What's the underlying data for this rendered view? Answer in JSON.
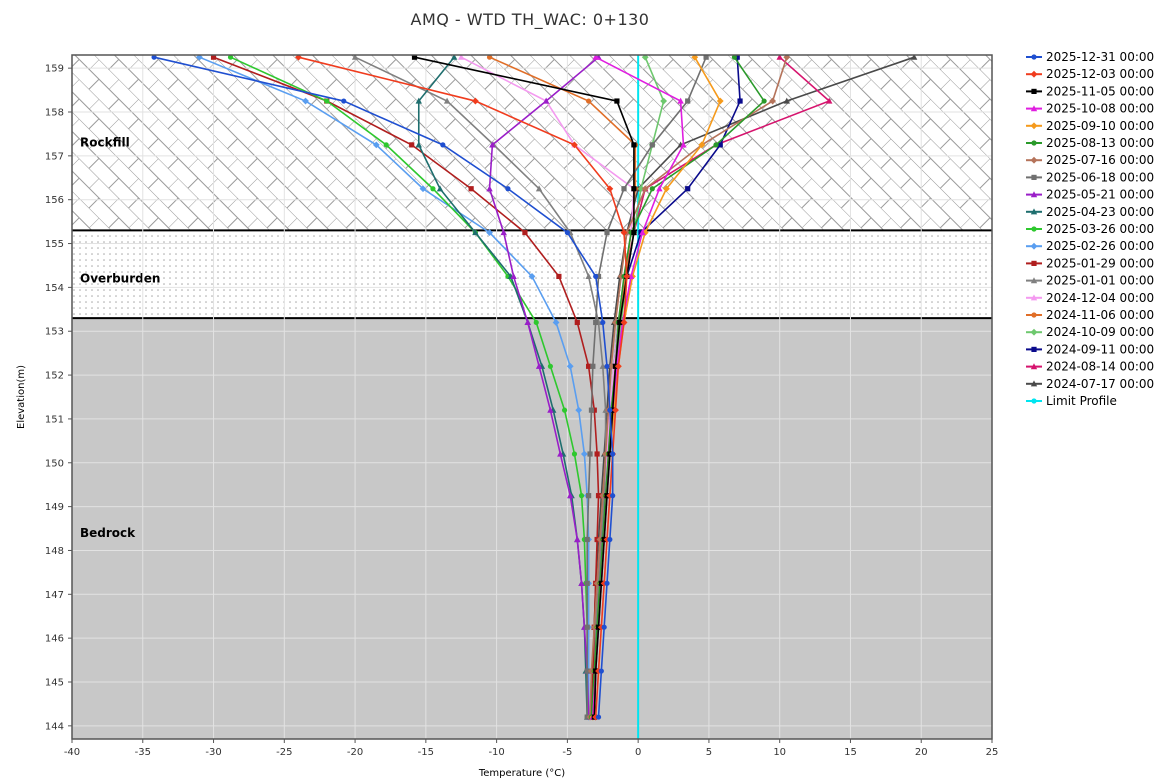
{
  "chart_data": {
    "type": "line",
    "title": "AMQ - WTD TH_WAC: 0+130",
    "xlabel": "Temperature (°C)",
    "ylabel": "Elevation(m)",
    "xlim": [
      -40,
      25
    ],
    "ylim": [
      143.7,
      159.3
    ],
    "x_ticks": [
      -40,
      -35,
      -30,
      -25,
      -20,
      -15,
      -10,
      -5,
      0,
      5,
      10,
      15,
      20,
      25
    ],
    "y_ticks": [
      144,
      145,
      146,
      147,
      148,
      149,
      150,
      151,
      152,
      153,
      154,
      155,
      156,
      157,
      158,
      159
    ],
    "grid": true,
    "legend_position": "right",
    "zones": [
      {
        "label": "Rockfill",
        "from": 155.3,
        "to": 159.3,
        "label_y": 157.3
      },
      {
        "label": "Overburden",
        "from": 153.3,
        "to": 155.3,
        "label_y": 154.2
      },
      {
        "label": "Bedrock",
        "from": 143.7,
        "to": 153.3,
        "label_y": 148.4
      }
    ],
    "elevations": [
      159.25,
      158.25,
      157.25,
      156.25,
      155.25,
      154.25,
      153.2,
      152.2,
      151.2,
      150.2,
      149.25,
      148.25,
      147.25,
      146.25,
      145.25,
      144.2
    ],
    "series": [
      {
        "name": "2025-12-31 00:00",
        "color": "#1f4fd0",
        "marker": "circle",
        "values": [
          -34.2,
          -20.8,
          -13.8,
          -9.2,
          -5.0,
          -3.0,
          -2.5,
          -2.2,
          -2.0,
          -1.8,
          -1.8,
          -2.0,
          -2.2,
          -2.4,
          -2.6,
          -2.8
        ]
      },
      {
        "name": "2025-12-03 00:00",
        "color": "#f03c1e",
        "marker": "diamond",
        "values": [
          -24.0,
          -11.5,
          -4.5,
          -2.0,
          -1.0,
          -0.8,
          -1.0,
          -1.4,
          -1.6,
          -1.8,
          -2.0,
          -2.2,
          -2.4,
          -2.6,
          -2.8,
          -3.0
        ]
      },
      {
        "name": "2025-11-05 00:00",
        "color": "#000000",
        "marker": "square",
        "values": [
          -15.8,
          -1.5,
          -0.3,
          -0.3,
          -0.3,
          -0.8,
          -1.3,
          -1.6,
          -1.8,
          -2.0,
          -2.2,
          -2.4,
          -2.6,
          -2.8,
          -3.0,
          -3.1
        ]
      },
      {
        "name": "2025-10-08 00:00",
        "color": "#e01ee0",
        "marker": "triangle",
        "values": [
          -3.0,
          3.0,
          3.2,
          1.5,
          0.3,
          -0.5,
          -1.1,
          -1.5,
          -1.8,
          -2.0,
          -2.2,
          -2.4,
          -2.6,
          -2.8,
          -3.0,
          -3.2
        ]
      },
      {
        "name": "2025-09-10 00:00",
        "color": "#f59a1c",
        "marker": "diamond",
        "values": [
          4.0,
          5.8,
          4.5,
          2.0,
          0.5,
          -0.4,
          -1.0,
          -1.4,
          -1.7,
          -2.0,
          -2.2,
          -2.4,
          -2.6,
          -2.8,
          -3.0,
          -3.2
        ]
      },
      {
        "name": "2025-08-13 00:00",
        "color": "#2a9a2a",
        "marker": "circle",
        "values": [
          6.8,
          8.9,
          5.5,
          1.0,
          -0.5,
          -1.0,
          -1.4,
          -1.6,
          -1.9,
          -2.1,
          -2.3,
          -2.5,
          -2.7,
          -2.9,
          -3.1,
          -3.3
        ]
      },
      {
        "name": "2025-07-16 00:00",
        "color": "#b5735a",
        "marker": "diamond",
        "values": [
          10.5,
          9.5,
          4.5,
          0.5,
          -0.8,
          -1.2,
          -1.6,
          -1.9,
          -2.1,
          -2.3,
          -2.5,
          -2.7,
          -2.9,
          -3.1,
          -3.3,
          -3.4
        ]
      },
      {
        "name": "2025-06-18 00:00",
        "color": "#707070",
        "marker": "square",
        "values": [
          4.8,
          3.5,
          1.0,
          -1.0,
          -2.2,
          -2.8,
          -3.0,
          -3.2,
          -3.3,
          -3.4,
          -3.5,
          -3.6,
          -3.6,
          -3.6,
          -3.6,
          -3.6
        ]
      },
      {
        "name": "2025-05-21 00:00",
        "color": "#9a1ec8",
        "marker": "triangle",
        "values": [
          -2.8,
          -6.5,
          -10.3,
          -10.5,
          -9.5,
          -8.8,
          -7.8,
          -7.0,
          -6.2,
          -5.5,
          -4.8,
          -4.3,
          -4.0,
          -3.8,
          -3.6,
          -3.5
        ]
      },
      {
        "name": "2025-04-23 00:00",
        "color": "#1e6e6e",
        "marker": "triangle",
        "values": [
          -13.0,
          -15.5,
          -15.5,
          -14.0,
          -11.5,
          -9.0,
          -7.8,
          -6.8,
          -6.0,
          -5.3,
          -4.7,
          -4.3,
          -4.0,
          -3.8,
          -3.7,
          -3.6
        ]
      },
      {
        "name": "2025-03-26 00:00",
        "color": "#2ec82e",
        "marker": "circle",
        "values": [
          -28.8,
          -22.0,
          -17.8,
          -14.5,
          -11.5,
          -9.2,
          -7.2,
          -6.2,
          -5.2,
          -4.5,
          -4.0,
          -3.8,
          -3.7,
          -3.6,
          -3.6,
          -3.6
        ]
      },
      {
        "name": "2025-02-26 00:00",
        "color": "#5a9ef0",
        "marker": "diamond",
        "values": [
          -31.0,
          -23.5,
          -18.5,
          -15.2,
          -10.5,
          -7.5,
          -5.8,
          -4.8,
          -4.2,
          -3.8,
          -3.6,
          -3.5,
          -3.5,
          -3.5,
          -3.5,
          -3.5
        ]
      },
      {
        "name": "2025-01-29 00:00",
        "color": "#b01e1e",
        "marker": "square",
        "values": [
          -30.0,
          -22.0,
          -16.0,
          -11.8,
          -8.0,
          -5.6,
          -4.3,
          -3.5,
          -3.1,
          -2.9,
          -2.8,
          -2.9,
          -3.0,
          -3.1,
          -3.2,
          -3.3
        ]
      },
      {
        "name": "2025-01-01 00:00",
        "color": "#808080",
        "marker": "triangle",
        "values": [
          -20.0,
          -13.5,
          -10.2,
          -7.0,
          -4.8,
          -3.5,
          -2.8,
          -2.5,
          -2.3,
          -2.3,
          -2.4,
          -2.6,
          -2.8,
          -3.0,
          -3.2,
          -3.4
        ]
      },
      {
        "name": "2024-12-04 00:00",
        "color": "#f49af0",
        "marker": "triangle",
        "values": [
          -12.5,
          -6.5,
          -4.5,
          -0.3,
          -0.5,
          -1.0,
          -1.4,
          -1.7,
          -2.0,
          -2.2,
          -2.4,
          -2.6,
          -2.8,
          -3.0,
          -3.2,
          -3.4
        ]
      },
      {
        "name": "2024-11-06 00:00",
        "color": "#e06e28",
        "marker": "circle",
        "values": [
          -10.5,
          -3.5,
          -0.2,
          -0.2,
          -0.5,
          -0.9,
          -1.3,
          -1.6,
          -1.9,
          -2.1,
          -2.3,
          -2.5,
          -2.7,
          -2.9,
          -3.1,
          -3.2
        ]
      },
      {
        "name": "2024-10-09 00:00",
        "color": "#6ec86e",
        "marker": "diamond",
        "values": [
          0.5,
          1.8,
          1.0,
          0.2,
          -0.3,
          -0.8,
          -1.2,
          -1.5,
          -1.8,
          -2.0,
          -2.2,
          -2.4,
          -2.6,
          -2.8,
          -3.0,
          -3.2
        ]
      },
      {
        "name": "2024-09-11 00:00",
        "color": "#0a0a8c",
        "marker": "square",
        "values": [
          7.0,
          7.2,
          5.8,
          3.5,
          0.2,
          -0.8,
          -1.4,
          -1.7,
          -1.9,
          -2.1,
          -2.3,
          -2.5,
          -2.7,
          -2.9,
          -3.0,
          -3.1
        ]
      },
      {
        "name": "2024-08-14 00:00",
        "color": "#d6146e",
        "marker": "triangle",
        "values": [
          10.0,
          13.5,
          5.5,
          0.5,
          -0.3,
          -0.9,
          -1.3,
          -1.6,
          -1.9,
          -2.1,
          -2.3,
          -2.5,
          -2.7,
          -2.9,
          -3.0,
          -3.1
        ]
      },
      {
        "name": "2024-07-17 00:00",
        "color": "#4a4a4a",
        "marker": "triangle",
        "values": [
          19.5,
          10.5,
          3.0,
          0.0,
          -0.8,
          -1.3,
          -1.7,
          -2.0,
          -2.2,
          -2.4,
          -2.6,
          -2.8,
          -3.0,
          -3.1,
          -3.2,
          -3.3
        ]
      }
    ],
    "limit_profile": {
      "name": "Limit Profile",
      "color": "#00e5f0",
      "x": 0
    }
  }
}
